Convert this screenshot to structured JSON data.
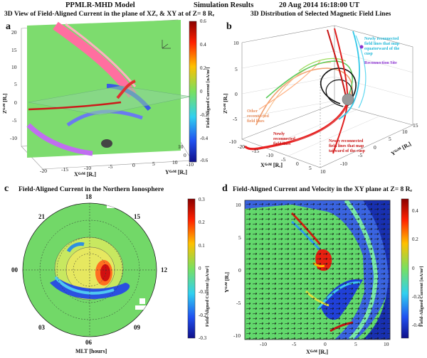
{
  "header": {
    "model": "PPMLR-MHD Model",
    "results": "Simulation Results",
    "datetime": "20 Aug 2014  16:18:00 UT"
  },
  "panel_a": {
    "letter": "a",
    "title": "3D View of Field-Aligned Current in the plane of XZ, & XY at of Z= 8 Rₑ",
    "z_label": "Zᴳˢᴹ [Rₑ]",
    "x_label": "Xᴳˢᴹ [Rₑ]",
    "y_label": "Yᴳˢᴹ [Rₑ]",
    "z_ticks": [
      "20",
      "15",
      "10",
      "5",
      "0",
      "-5",
      "-10"
    ],
    "x_ticks": [
      "-20",
      "-15",
      "-10",
      "-5",
      "0",
      "5",
      "10"
    ],
    "y_ticks": [
      "10",
      "0",
      "-10"
    ],
    "colorbar_label": "Field-Aligned Current [nA/m²]",
    "colorbar_ticks": [
      "0.6",
      "0.4",
      "0.2",
      "0",
      "-0.2",
      "-0.4",
      "-0.6"
    ]
  },
  "panel_b": {
    "letter": "b",
    "title": "3D Distribution of Selected Magnetic Field Lines",
    "z_label": "Zᴳˢᴹ [Rₑ]",
    "x_label": "Xᴳˢᴹ [Rₑ]",
    "y_label": "Yᴳˢᴹ [Rₑ]",
    "z_ticks": [
      "10",
      "5",
      "0",
      "-5",
      "-10"
    ],
    "x_ticks": [
      "-20",
      "-15",
      "-10",
      "-5",
      "0",
      "5",
      "10"
    ],
    "y_ticks": [
      "15",
      "10",
      "5",
      "0",
      "-5",
      "-10"
    ],
    "ann_cyan": "Newly reconnected\nfield lines that map\nequatorward of the\ncusp",
    "ann_site": "Reconnection Site",
    "ann_other": "Other\nreconnected\nfield lines",
    "ann_red1": "Newly\nreconnected\nfield lines",
    "ann_red2": "Newly reconnected\nfield lines that map\ntailward of the cusp"
  },
  "panel_c": {
    "letter": "c",
    "title": "Field-Aligned Current in the Northern Ionosphere",
    "mlt": [
      "18",
      "21",
      "15",
      "00",
      "12",
      "03",
      "09",
      "06"
    ],
    "mlt_label": "MLT [hours]",
    "colorbar_label": "Field-Aligned Current [μA/m²]",
    "colorbar_ticks": [
      "0.3",
      "0.2",
      "0.1",
      "0",
      "-0.1",
      "-0.2",
      "-0.3"
    ]
  },
  "panel_d": {
    "letter": "d",
    "title": "Field-Aligned Current and Velocity in the XY plane at Z= 8 Rₑ",
    "y_label": "Yᴳˢᴹ [Rₑ]",
    "x_label": "Xᴳˢᴹ [Rₑ]",
    "y_ticks": [
      "10",
      "5",
      "0",
      "-5",
      "-10"
    ],
    "x_ticks": [
      "-10",
      "-5",
      "0",
      "5",
      "10"
    ],
    "colorbar_label": "Field-Aligned Current [nA/m²]",
    "colorbar_ticks": [
      "0.4",
      "0.2",
      "0",
      "-0.2",
      "-0.4"
    ]
  },
  "colors": {
    "jet_red": "#c81414",
    "jet_orange": "#ff8a00",
    "jet_yellow": "#e8e84a",
    "jet_green": "#6fdc6a",
    "jet_cyan": "#46c8e6",
    "jet_blue": "#2a4fd8",
    "pink": "#ff6fa0"
  }
}
